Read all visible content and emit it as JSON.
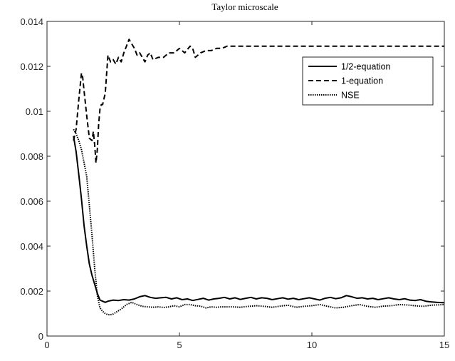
{
  "chart_data": {
    "type": "line",
    "title": "Taylor microscale",
    "xlabel": "",
    "ylabel": "",
    "xlim": [
      0,
      15
    ],
    "ylim": [
      0,
      0.014
    ],
    "xticks": [
      0,
      5,
      10,
      15
    ],
    "xtick_labels": [
      "0",
      "5",
      "10",
      "15"
    ],
    "yticks": [
      0,
      0.002,
      0.004,
      0.006,
      0.008,
      0.01,
      0.012,
      0.014
    ],
    "ytick_labels": [
      "0",
      "0.002",
      "0.004",
      "0.006",
      "0.008",
      "0.01",
      "0.012",
      "0.014"
    ],
    "grid": false,
    "legend_position": "top-right",
    "series": [
      {
        "name": "1/2-equation",
        "style": "solid",
        "color": "#000000",
        "x": [
          1.0,
          1.1,
          1.2,
          1.3,
          1.4,
          1.5,
          1.6,
          1.7,
          1.8,
          1.9,
          2.0,
          2.1,
          2.2,
          2.3,
          2.5,
          2.7,
          2.9,
          3.1,
          3.3,
          3.5,
          3.7,
          3.9,
          4.1,
          4.3,
          4.5,
          4.7,
          4.9,
          5.1,
          5.3,
          5.5,
          5.7,
          5.9,
          6.1,
          6.3,
          6.5,
          6.7,
          6.9,
          7.1,
          7.3,
          7.5,
          7.7,
          7.9,
          8.1,
          8.3,
          8.5,
          8.7,
          8.9,
          9.1,
          9.3,
          9.5,
          9.7,
          9.9,
          10.1,
          10.3,
          10.5,
          10.7,
          10.9,
          11.1,
          11.3,
          11.5,
          11.7,
          11.9,
          12.1,
          12.3,
          12.5,
          12.7,
          12.9,
          13.1,
          13.3,
          13.5,
          13.7,
          13.9,
          14.1,
          14.3,
          14.5,
          14.7,
          15.0
        ],
        "y": [
          0.0089,
          0.0082,
          0.0072,
          0.0061,
          0.0049,
          0.004,
          0.0032,
          0.0027,
          0.0023,
          0.0019,
          0.0016,
          0.00155,
          0.0015,
          0.00155,
          0.0016,
          0.00158,
          0.00162,
          0.0016,
          0.00165,
          0.00175,
          0.0018,
          0.00172,
          0.00168,
          0.0017,
          0.00172,
          0.00165,
          0.0017,
          0.00162,
          0.00165,
          0.00158,
          0.00163,
          0.00168,
          0.0016,
          0.00165,
          0.00168,
          0.00172,
          0.00165,
          0.0017,
          0.00163,
          0.00168,
          0.00172,
          0.00165,
          0.0017,
          0.00168,
          0.00162,
          0.00166,
          0.0017,
          0.00164,
          0.00168,
          0.00162,
          0.00166,
          0.0017,
          0.00165,
          0.0016,
          0.00168,
          0.00172,
          0.00166,
          0.0017,
          0.0018,
          0.00175,
          0.00168,
          0.0017,
          0.00165,
          0.00168,
          0.00162,
          0.00166,
          0.0017,
          0.00165,
          0.00162,
          0.00166,
          0.0016,
          0.00158,
          0.00162,
          0.00155,
          0.00152,
          0.0015,
          0.00148
        ]
      },
      {
        "name": "1-equation",
        "style": "dashed",
        "color": "#000000",
        "x": [
          1.0,
          1.1,
          1.2,
          1.3,
          1.35,
          1.4,
          1.5,
          1.6,
          1.7,
          1.75,
          1.8,
          1.85,
          1.9,
          1.95,
          2.0,
          2.05,
          2.1,
          2.2,
          2.3,
          2.4,
          2.5,
          2.6,
          2.7,
          2.8,
          2.9,
          3.0,
          3.1,
          3.2,
          3.3,
          3.4,
          3.5,
          3.6,
          3.7,
          3.8,
          3.9,
          4.0,
          4.2,
          4.4,
          4.6,
          4.8,
          5.0,
          5.2,
          5.4,
          5.5,
          5.6,
          5.8,
          6.0,
          6.2,
          6.4,
          6.6,
          6.8,
          7.0,
          7.5,
          8.0,
          8.5,
          9.0,
          9.5,
          10.0,
          11.0,
          12.0,
          13.0,
          14.0,
          15.0
        ],
        "y": [
          0.0087,
          0.0092,
          0.0105,
          0.0117,
          0.0115,
          0.0109,
          0.0098,
          0.0088,
          0.0087,
          0.0091,
          0.0085,
          0.0077,
          0.0083,
          0.0094,
          0.0101,
          0.0103,
          0.0103,
          0.0108,
          0.0125,
          0.0122,
          0.0123,
          0.0121,
          0.0124,
          0.0122,
          0.0126,
          0.0129,
          0.0132,
          0.013,
          0.0128,
          0.0125,
          0.0126,
          0.0124,
          0.0122,
          0.0125,
          0.0126,
          0.0123,
          0.0124,
          0.0124,
          0.0126,
          0.0126,
          0.0128,
          0.0126,
          0.0129,
          0.0128,
          0.0124,
          0.0126,
          0.0127,
          0.0127,
          0.0128,
          0.0128,
          0.0129,
          0.0129,
          0.0129,
          0.0129,
          0.0129,
          0.0129,
          0.0129,
          0.0129,
          0.0129,
          0.0129,
          0.0129,
          0.0129,
          0.0129
        ]
      },
      {
        "name": "NSE",
        "style": "dotted",
        "color": "#000000",
        "x": [
          1.0,
          1.1,
          1.2,
          1.3,
          1.4,
          1.5,
          1.6,
          1.7,
          1.8,
          1.9,
          2.0,
          2.1,
          2.2,
          2.3,
          2.4,
          2.5,
          2.6,
          2.8,
          3.0,
          3.2,
          3.4,
          3.6,
          3.8,
          4.0,
          4.2,
          4.4,
          4.6,
          4.8,
          5.0,
          5.2,
          5.4,
          5.6,
          5.8,
          6.0,
          6.2,
          6.4,
          6.6,
          6.8,
          7.0,
          7.3,
          7.6,
          7.9,
          8.2,
          8.5,
          8.8,
          9.1,
          9.4,
          9.7,
          10.0,
          10.3,
          10.6,
          10.9,
          11.2,
          11.5,
          11.8,
          12.1,
          12.4,
          12.7,
          13.0,
          13.3,
          13.6,
          13.9,
          14.2,
          14.5,
          15.0
        ],
        "y": [
          0.0092,
          0.009,
          0.0087,
          0.0083,
          0.0077,
          0.0071,
          0.0058,
          0.0045,
          0.003,
          0.0018,
          0.00125,
          0.0011,
          0.001,
          0.00095,
          0.00095,
          0.00098,
          0.00105,
          0.0012,
          0.0014,
          0.0015,
          0.0014,
          0.00132,
          0.0013,
          0.00128,
          0.0013,
          0.00127,
          0.0013,
          0.00135,
          0.0013,
          0.0014,
          0.0014,
          0.00135,
          0.00133,
          0.00125,
          0.0013,
          0.00128,
          0.0013,
          0.0013,
          0.0013,
          0.00128,
          0.00132,
          0.00135,
          0.00132,
          0.00128,
          0.00133,
          0.00137,
          0.00128,
          0.00132,
          0.00135,
          0.0014,
          0.00132,
          0.00125,
          0.00128,
          0.00135,
          0.0014,
          0.00132,
          0.00128,
          0.00133,
          0.00135,
          0.0014,
          0.00138,
          0.00135,
          0.00132,
          0.00137,
          0.0014
        ]
      }
    ]
  }
}
